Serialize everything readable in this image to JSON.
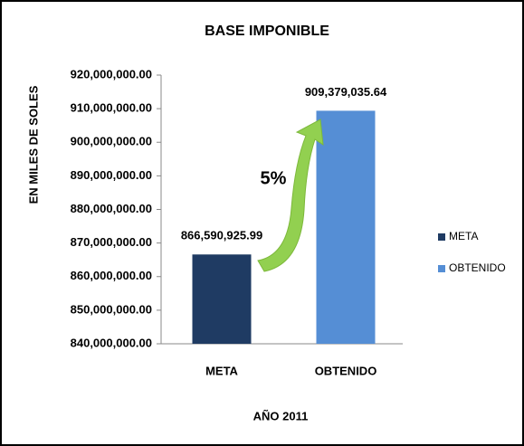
{
  "chart_data": {
    "type": "bar",
    "title": "BASE IMPONIBLE",
    "y_label": "EN MILES DE SOLES",
    "x_label": "AÑO 2011",
    "annotation": "5%",
    "categories": [
      "META",
      "OBTENIDO"
    ],
    "values": [
      866590925.99,
      909379035.64
    ],
    "value_labels": [
      "866,590,925.99",
      "909,379,035.64"
    ],
    "colors": [
      "#1f3b63",
      "#558ed5"
    ],
    "ylim": [
      840000000,
      920000000
    ],
    "yticks": [
      {
        "value": 840000000,
        "label": "840,000,000.00"
      },
      {
        "value": 850000000,
        "label": "850,000,000.00"
      },
      {
        "value": 860000000,
        "label": "860,000,000.00"
      },
      {
        "value": 870000000,
        "label": "870,000,000.00"
      },
      {
        "value": 880000000,
        "label": "880,000,000.00"
      },
      {
        "value": 890000000,
        "label": "890,000,000.00"
      },
      {
        "value": 900000000,
        "label": "900,000,000.00"
      },
      {
        "value": 910000000,
        "label": "910,000,000.00"
      },
      {
        "value": 920000000,
        "label": "920,000,000.00"
      }
    ],
    "legend": "right"
  }
}
